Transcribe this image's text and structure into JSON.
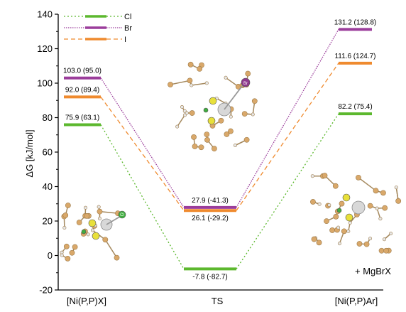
{
  "chart_data": {
    "type": "line",
    "ylabel": "ΔG [kJ/mol]",
    "ylim": [
      -20,
      140
    ],
    "yticks": [
      "-20",
      "0",
      "20",
      "40",
      "60",
      "80",
      "100",
      "120",
      "140"
    ],
    "categories": [
      "[Ni(P,P)X]",
      "TS",
      "[Ni(P,P)Ar]"
    ],
    "legend": [
      "Cl",
      "Br",
      "I"
    ],
    "legend_position": "top-left",
    "grid": false,
    "colors": {
      "Cl": "#5cb82e",
      "Br": "#9b3d9b",
      "I": "#ef8a2e"
    },
    "series": [
      {
        "name": "Cl",
        "values": [
          75.9,
          -7.8,
          82.2
        ],
        "labels": [
          "75.9 (63.1)",
          "-7.8 (-82.7)",
          "82.2 (75.4)"
        ]
      },
      {
        "name": "Br",
        "values": [
          103.0,
          27.9,
          131.2
        ],
        "labels": [
          "103.0 (95.0)",
          "27.9 (-41.3)",
          "131.2 (128.8)"
        ]
      },
      {
        "name": "I",
        "values": [
          92.0,
          26.1,
          111.6
        ],
        "labels": [
          "92.0 (89.4)",
          "26.1 (-29.2)",
          "111.6 (124.7)"
        ]
      }
    ],
    "annotations": [
      "+ MgBrX"
    ],
    "structure_labels": [
      "Cl",
      "Br"
    ]
  }
}
